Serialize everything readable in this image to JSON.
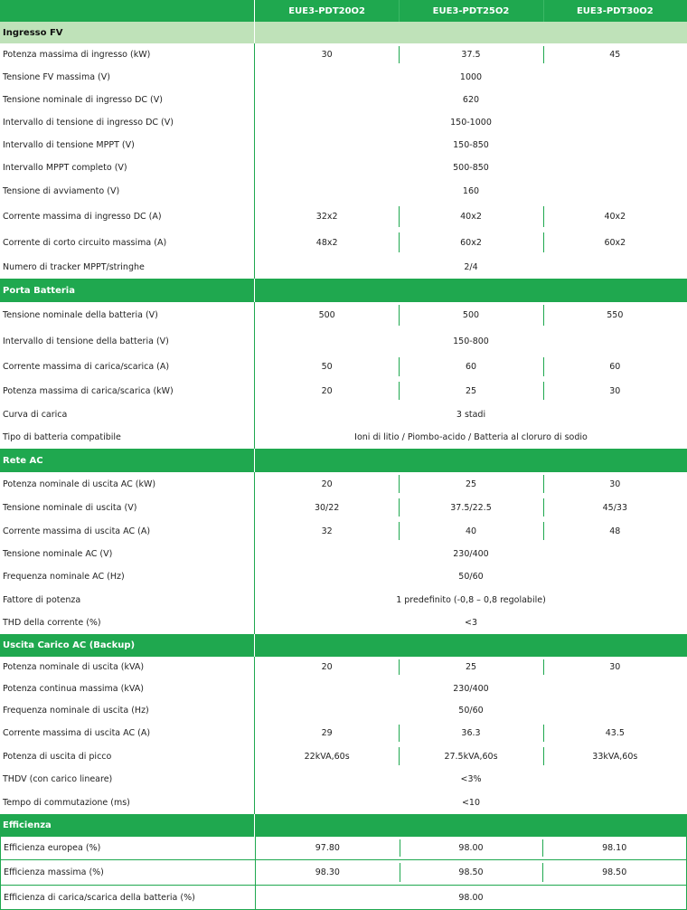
{
  "header": {
    "columns": [
      "",
      "EUE3-PDT20O2",
      "EUE3-PDT25O2",
      "EUE3-PDT30O2"
    ]
  },
  "colors": {
    "accent": "#1fa84f",
    "light_section": "#bfe2b9"
  },
  "rows": [
    {
      "section": "Ingresso FV",
      "light": true
    },
    {
      "label": "Potenza massima di ingresso (kW)",
      "values": [
        "30",
        "37.5",
        "45"
      ]
    },
    {
      "label": "Tensione FV massima (V)",
      "values": [
        "1000"
      ]
    },
    {
      "label": "Tensione nominale di ingresso DC (V)",
      "values": [
        "620"
      ]
    },
    {
      "label": "Intervallo di tensione di ingresso DC (V)",
      "values": [
        "150-1000"
      ]
    },
    {
      "label": "Intervallo di tensione MPPT (V)",
      "values": [
        "150-850"
      ]
    },
    {
      "label": "Intervallo MPPT completo (V)",
      "values": [
        "500-850"
      ]
    },
    {
      "label": "Tensione di avviamento (V)",
      "values": [
        "160"
      ]
    },
    {
      "label": "Corrente massima di ingresso DC (A)",
      "values": [
        "32x2",
        "40x2",
        "40x2"
      ]
    },
    {
      "label": "Corrente di corto circuito massima (A)",
      "values": [
        "48x2",
        "60x2",
        "60x2"
      ]
    },
    {
      "label": "Numero di tracker MPPT/stringhe",
      "values": [
        "2/4"
      ]
    },
    {
      "section": "Porta Batteria"
    },
    {
      "label": "Tensione nominale della batteria (V)",
      "values": [
        "500",
        "500",
        "550"
      ]
    },
    {
      "label": "Intervallo di tensione della batteria (V)",
      "values": [
        "150-800"
      ]
    },
    {
      "label": "Corrente massima di carica/scarica (A)",
      "values": [
        "50",
        "60",
        "60"
      ]
    },
    {
      "label": "Potenza massima di carica/scarica (kW)",
      "values": [
        "20",
        "25",
        "30"
      ]
    },
    {
      "label": "Curva di carica",
      "values": [
        "3 stadi"
      ]
    },
    {
      "label": "Tipo di batteria compatibile",
      "values": [
        "Ioni di litio / Piombo-acido / Batteria al cloruro di sodio"
      ]
    },
    {
      "section": "Rete AC"
    },
    {
      "label": "Potenza nominale di uscita AC (kW)",
      "values": [
        "20",
        "25",
        "30"
      ]
    },
    {
      "label": "Tensione nominale di uscita (V)",
      "values": [
        "30/22",
        "37.5/22.5",
        "45/33"
      ]
    },
    {
      "label": "Corrente massima di uscita AC (A)",
      "values": [
        "32",
        "40",
        "48"
      ]
    },
    {
      "label": "Tensione nominale AC (V)",
      "values": [
        "230/400"
      ]
    },
    {
      "label": "Frequenza nominale AC (Hz)",
      "values": [
        "50/60"
      ]
    },
    {
      "label": "Fattore di potenza",
      "values": [
        "1 predefinito (-0,8 – 0,8 regolabile)"
      ]
    },
    {
      "label": "THD della corrente (%)",
      "values": [
        "<3"
      ]
    },
    {
      "section": "Uscita Carico AC (Backup)"
    },
    {
      "label": "Potenza nominale di uscita (kVA)",
      "values": [
        "20",
        "25",
        "30"
      ]
    },
    {
      "label": "Potenza continua massima (kVA)",
      "values": [
        "230/400"
      ]
    },
    {
      "label": "Frequenza nominale di uscita (Hz)",
      "values": [
        "50/60"
      ]
    },
    {
      "label": "Corrente massima di uscita AC (A)",
      "values": [
        "29",
        "36.3",
        "43.5"
      ]
    },
    {
      "label": "Potenza di uscita di picco",
      "values": [
        "22kVA,60s",
        "27.5kVA,60s",
        "33kVA,60s"
      ]
    },
    {
      "label": "THDV (con carico lineare)",
      "values": [
        "<3%"
      ]
    },
    {
      "label": "Tempo di commutazione (ms)",
      "values": [
        "<10"
      ]
    },
    {
      "section": "Efficienza"
    },
    {
      "label": "Efficienza europea (%)",
      "values": [
        "97.80",
        "98.00",
        "98.10"
      ],
      "boxed": true
    },
    {
      "label": "Efficienza massima (%)",
      "values": [
        "98.30",
        "98.50",
        "98.50"
      ],
      "boxed": true
    },
    {
      "label": "Efficienza di carica/scarica della batteria (%)",
      "values": [
        "98.00"
      ],
      "boxed": true
    }
  ]
}
